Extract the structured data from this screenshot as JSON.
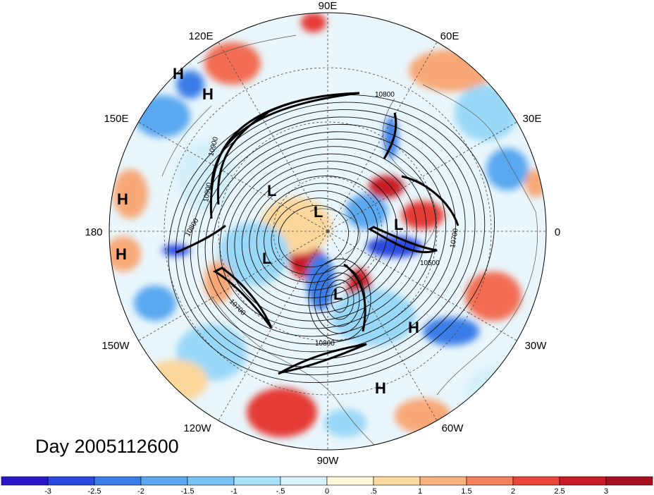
{
  "map": {
    "title_day": "Day 2005112600",
    "longitude_labels": [
      "90E",
      "60E",
      "30E",
      "0",
      "30W",
      "60W",
      "90W",
      "120W",
      "150W",
      "180",
      "150E",
      "120E"
    ],
    "pressure_centers": [
      "H",
      "H",
      "H",
      "H",
      "L",
      "L",
      "L",
      "L",
      "L",
      "H",
      "H"
    ],
    "contour_labels": [
      "10800",
      "10900",
      "10900",
      "10800",
      "10700",
      "10500",
      "10700",
      "10800"
    ],
    "colors": {
      "neg3": "#2a17c9",
      "neg25": "#2b48e0",
      "neg2": "#3a7de8",
      "neg15": "#5aa8f0",
      "neg1": "#9ad8f8",
      "neg05": "#d4f0fb",
      "pos0": "#fdf4d2",
      "pos05": "#fbd79c",
      "pos1": "#f8a877",
      "pos15": "#f26d52",
      "pos2": "#e53b36",
      "pos25": "#c91b27",
      "pos3": "#a50f20"
    }
  },
  "colorbar": {
    "ticks": [
      "-3",
      "-2.5",
      "-2",
      "-1.5",
      "-1",
      "-.5",
      "0",
      ".5",
      "1",
      "1.5",
      "2",
      "2.5",
      "3"
    ],
    "colors": [
      "#2a17c9",
      "#2b48e0",
      "#3a7de8",
      "#5aa8f0",
      "#76c2f4",
      "#a8e2fa",
      "#d9f3fc",
      "#fdf6d8",
      "#fbdca0",
      "#f8b27d",
      "#f4805c",
      "#e8473a",
      "#c91b27",
      "#a50f20"
    ]
  }
}
